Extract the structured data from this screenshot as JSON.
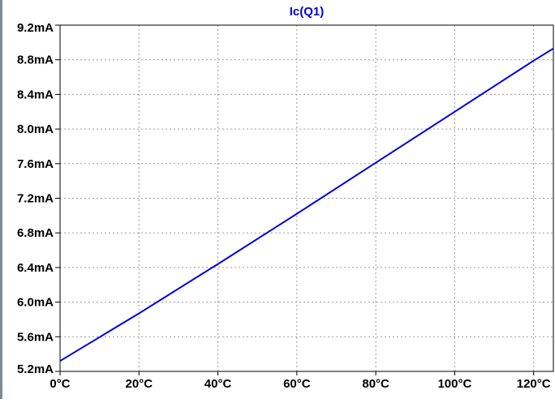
{
  "window": {
    "background": "#ffffff"
  },
  "chart_data": {
    "type": "line",
    "title": "",
    "xlabel": "",
    "ylabel": "",
    "xlim": [
      0,
      125
    ],
    "ylim": [
      5.2,
      9.2
    ],
    "x_ticks": [
      0,
      20,
      40,
      60,
      80,
      100,
      120
    ],
    "x_tick_labels": [
      "0°C",
      "20°C",
      "40°C",
      "60°C",
      "80°C",
      "100°C",
      "120°C"
    ],
    "y_ticks": [
      5.2,
      5.6,
      6.0,
      6.4,
      6.8,
      7.2,
      7.6,
      8.0,
      8.4,
      8.8,
      9.2
    ],
    "y_tick_labels": [
      "5.2mA",
      "5.6mA",
      "6.0mA",
      "6.4mA",
      "6.8mA",
      "7.2mA",
      "7.6mA",
      "8.0mA",
      "8.4mA",
      "8.8mA",
      "9.2mA"
    ],
    "grid": true,
    "grid_style": "dotted",
    "series": [
      {
        "name": "Ic(Q1)",
        "color": "#0000dd",
        "x": [
          0,
          20,
          40,
          60,
          80,
          100,
          120,
          125
        ],
        "y": [
          5.32,
          5.87,
          6.44,
          7.02,
          7.61,
          8.2,
          8.79,
          8.93
        ]
      }
    ]
  }
}
